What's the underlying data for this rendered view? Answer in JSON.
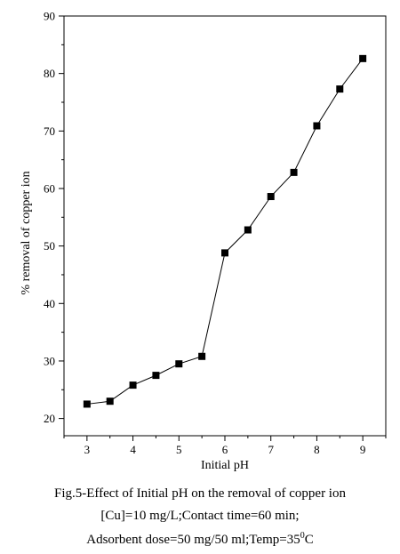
{
  "chart_data": {
    "type": "scatter",
    "title": "",
    "xlabel": "Initial pH",
    "ylabel": "% removal of copper ion",
    "xlim": [
      2.5,
      9.5
    ],
    "ylim": [
      17,
      90
    ],
    "x_ticks": [
      3,
      4,
      5,
      6,
      7,
      8,
      9
    ],
    "y_ticks": [
      20,
      30,
      40,
      50,
      60,
      70,
      80,
      90
    ],
    "grid": false,
    "legend": "none",
    "marker": "square",
    "line_connected": true,
    "x": [
      3,
      3.5,
      4,
      4.5,
      5,
      5.5,
      6,
      6.5,
      7,
      7.5,
      8,
      8.5,
      9
    ],
    "y": [
      22.5,
      23.0,
      25.8,
      27.5,
      29.5,
      30.8,
      48.8,
      52.8,
      58.6,
      62.8,
      70.9,
      77.3,
      82.6
    ],
    "color": "#000000"
  },
  "caption": {
    "line1": "Fig.5-Effect of Initial pH on the removal of copper ion",
    "line2": "[Cu]=10 mg/L;Contact time=60 min;",
    "line3_prefix": "Adsorbent dose=50 mg/50 ml;Temp=35",
    "line3_sup": "0",
    "line3_suffix": "C"
  }
}
